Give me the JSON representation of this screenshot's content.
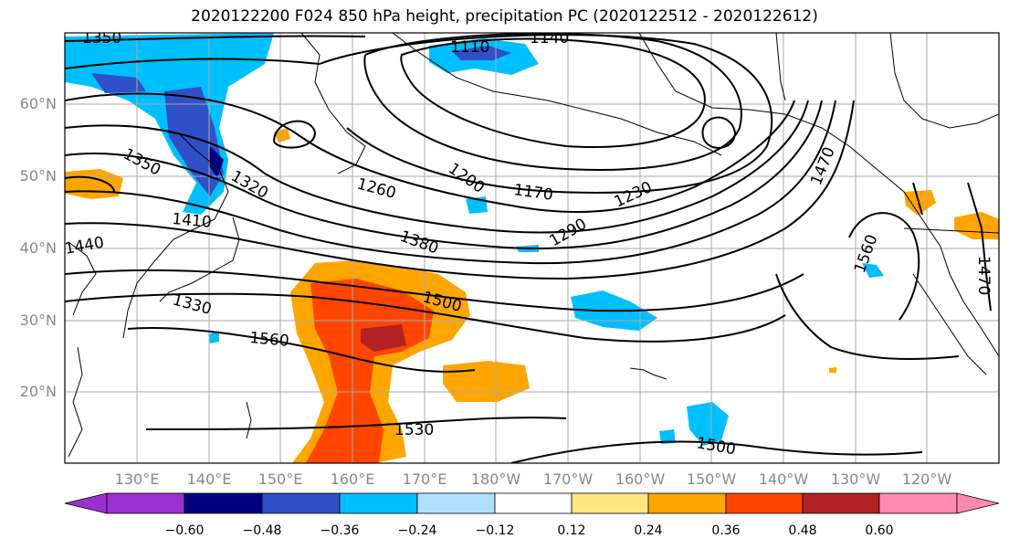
{
  "title": "2020122200 F024 850 hPa height, precipitation PC (2020122512 - 2020122612)",
  "lat_labels": [
    "60°N",
    "50°N",
    "40°N",
    "30°N",
    "20°N"
  ],
  "lon_labels": [
    "130°E",
    "140°E",
    "150°E",
    "160°E",
    "170°E",
    "180°W",
    "170°W",
    "160°W",
    "150°W",
    "140°W",
    "130°W",
    "120°W"
  ],
  "contour_labels": [
    "1350",
    "1110",
    "1140",
    "1350",
    "1320",
    "1260",
    "1200",
    "1170",
    "1230",
    "1470",
    "1410",
    "1440",
    "1290",
    "1380",
    "1560",
    "1500",
    "1330",
    "1560",
    "1530",
    "1500",
    "1470"
  ],
  "colorbar": {
    "ticks": [
      "−0.60",
      "−0.48",
      "−0.36",
      "−0.24",
      "−0.12",
      "0.12",
      "0.24",
      "0.36",
      "0.48",
      "0.60"
    ],
    "colors": [
      "#9b30d0",
      "#000080",
      "#3050c8",
      "#00bfff",
      "#b0e0ff",
      "#ffffff",
      "#ffe680",
      "#ffa500",
      "#ff4500",
      "#b22222",
      "#ff88b0",
      "#ff88b0"
    ]
  }
}
